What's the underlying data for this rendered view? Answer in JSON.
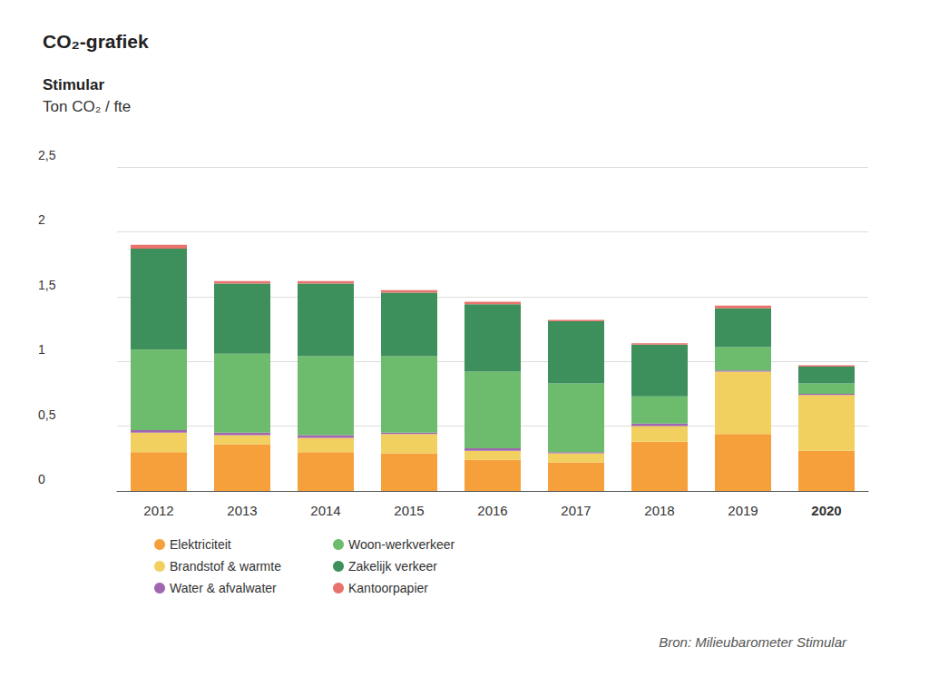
{
  "chart_data": {
    "type": "bar",
    "title": "CO₂-grafiek",
    "subtitle": "Stimular",
    "ylabel": "Ton CO₂ / fte",
    "annotations": [
      "Bron: Milieubarometer Stimular"
    ],
    "categories": [
      "2012",
      "2013",
      "2014",
      "2015",
      "2016",
      "2017",
      "2018",
      "2019",
      "2020"
    ],
    "series": [
      {
        "name": "Elektriciteit",
        "color": "#f5a03a",
        "values": [
          0.3,
          0.36,
          0.3,
          0.29,
          0.24,
          0.22,
          0.38,
          0.44,
          0.31
        ]
      },
      {
        "name": "Brandstof & warmte",
        "color": "#f2d060",
        "values": [
          0.15,
          0.07,
          0.11,
          0.15,
          0.07,
          0.07,
          0.12,
          0.48,
          0.43
        ]
      },
      {
        "name": "Water & afvalwater",
        "color": "#a066b0",
        "values": [
          0.02,
          0.02,
          0.02,
          0.01,
          0.02,
          0.01,
          0.02,
          0.01,
          0.01
        ]
      },
      {
        "name": "Woon-werkverkeer",
        "color": "#6dbb6d",
        "values": [
          0.62,
          0.61,
          0.61,
          0.59,
          0.59,
          0.53,
          0.21,
          0.18,
          0.08
        ]
      },
      {
        "name": "Zakelijk verkeer",
        "color": "#3d8f5c",
        "values": [
          0.78,
          0.54,
          0.56,
          0.49,
          0.52,
          0.48,
          0.4,
          0.3,
          0.13
        ]
      },
      {
        "name": "Kantoorpapier",
        "color": "#e8736c",
        "values": [
          0.03,
          0.02,
          0.02,
          0.02,
          0.02,
          0.01,
          0.01,
          0.02,
          0.01
        ]
      }
    ],
    "ylim": [
      0,
      2.5
    ],
    "yticks": [
      0,
      {
        "value": 0.5,
        "label": "0,5"
      },
      1,
      {
        "value": 1.5,
        "label": "1,5"
      },
      2,
      {
        "value": 2.5,
        "label": "2,5"
      }
    ],
    "stacked": true,
    "grid": true,
    "legend": "bottom"
  }
}
